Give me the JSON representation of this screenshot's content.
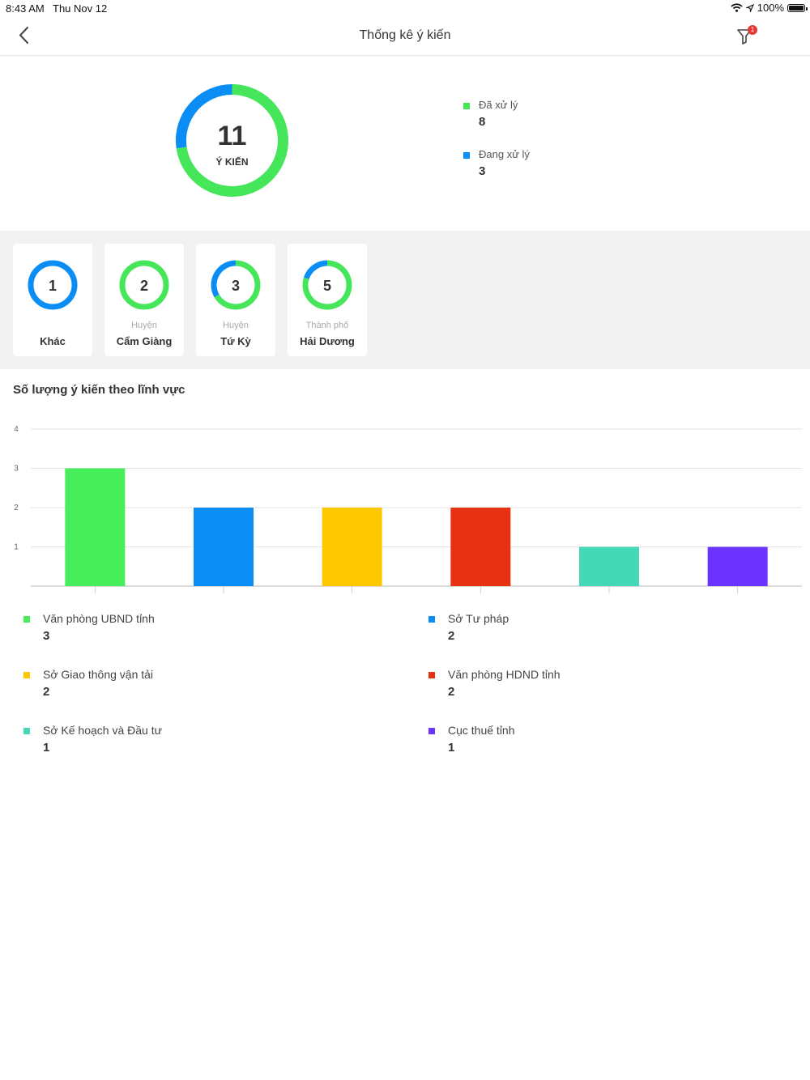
{
  "status_bar": {
    "time": "8:43 AM",
    "date": "Thu Nov 12",
    "battery": "100%"
  },
  "header": {
    "title": "Thống kê ý kiến",
    "filter_badge": "1"
  },
  "summary": {
    "total": "11",
    "total_label": "Ý KIẾN",
    "legend": [
      {
        "label": "Đã xử lý",
        "value": "8",
        "color": "#45e65a"
      },
      {
        "label": "Đang xử lý",
        "value": "3",
        "color": "#0a8ef5"
      }
    ]
  },
  "districts": [
    {
      "count": "1",
      "prefix": "",
      "name": "Khác",
      "done": 0,
      "pending": 1
    },
    {
      "count": "2",
      "prefix": "Huyện",
      "name": "Cẩm Giàng",
      "done": 2,
      "pending": 0
    },
    {
      "count": "3",
      "prefix": "Huyện",
      "name": "Tứ Kỳ",
      "done": 2,
      "pending": 1
    },
    {
      "count": "5",
      "prefix": "Thành phố",
      "name": "Hải Dương",
      "done": 4,
      "pending": 1
    }
  ],
  "section_title": "Số lượng ý kiến theo lĩnh vực",
  "chart_data": {
    "type": "bar",
    "categories": [
      "Văn phòng UBND tỉnh",
      "Sở Tư pháp",
      "Sở Giao thông vận tải",
      "Văn phòng HDND tỉnh",
      "Sở Kế hoạch và Đầu tư",
      "Cục thuế tỉnh"
    ],
    "values": [
      3,
      2,
      2,
      2,
      1,
      1
    ],
    "colors": [
      "#45ee5a",
      "#0a8ef5",
      "#fec800",
      "#e63213",
      "#44d8b6",
      "#6a33ff"
    ],
    "yticks": [
      1,
      2,
      3,
      4
    ],
    "ylim": [
      0,
      4
    ],
    "grid": true,
    "title": "",
    "xlabel": "",
    "ylabel": ""
  },
  "category_legend": [
    {
      "label": "Văn phòng UBND tỉnh",
      "value": "3"
    },
    {
      "label": "Sở Tư pháp",
      "value": "2"
    },
    {
      "label": "Sở Giao thông vận tải",
      "value": "2"
    },
    {
      "label": "Văn phòng HDND tỉnh",
      "value": "2"
    },
    {
      "label": "Sở Kế hoạch và Đầu tư",
      "value": "1"
    },
    {
      "label": "Cục thuế tỉnh",
      "value": "1"
    }
  ]
}
